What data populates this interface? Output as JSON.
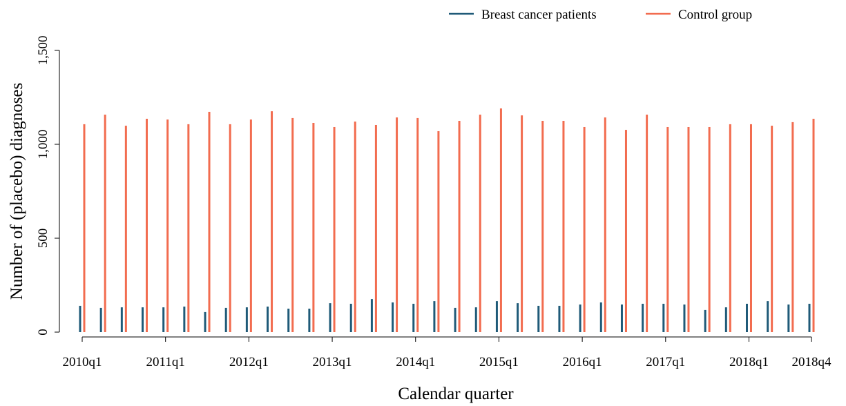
{
  "chart_data": {
    "type": "bar",
    "x_label": "Calendar quarter",
    "y_label": "Number of (placebo) diagnoses",
    "categories": [
      "2010q1",
      null,
      null,
      null,
      "2011q1",
      null,
      null,
      null,
      "2012q1",
      null,
      null,
      null,
      "2013q1",
      null,
      null,
      null,
      "2014q1",
      null,
      null,
      null,
      "2015q1",
      null,
      null,
      null,
      "2016q1",
      null,
      null,
      null,
      "2017q1",
      null,
      null,
      null,
      "2018q1",
      null,
      null,
      "2018q4"
    ],
    "series": [
      {
        "name": "Breast cancer patients",
        "color": "#1f5a78",
        "values": [
          140,
          129,
          132,
          132,
          132,
          136,
          107,
          129,
          132,
          136,
          125,
          125,
          154,
          151,
          176,
          158,
          151,
          165,
          129,
          132,
          165,
          154,
          140,
          140,
          147,
          158,
          147,
          151,
          151,
          147,
          118,
          132,
          151,
          165,
          147,
          151
        ]
      },
      {
        "name": "Control group",
        "color": "#f26c4f",
        "values": [
          1107,
          1158,
          1099,
          1136,
          1132,
          1107,
          1173,
          1107,
          1132,
          1176,
          1140,
          1114,
          1092,
          1121,
          1103,
          1143,
          1140,
          1070,
          1125,
          1158,
          1191,
          1154,
          1125,
          1125,
          1092,
          1143,
          1077,
          1158,
          1092,
          1092,
          1092,
          1107,
          1107,
          1099,
          1118,
          1136
        ]
      }
    ],
    "ylim": [
      0,
      1500
    ],
    "yticks": [
      0,
      500,
      {
        "value": 1000,
        "label": "1,000"
      },
      {
        "value": 1500,
        "label": "1,500"
      }
    ],
    "legend_position": "top-right"
  }
}
